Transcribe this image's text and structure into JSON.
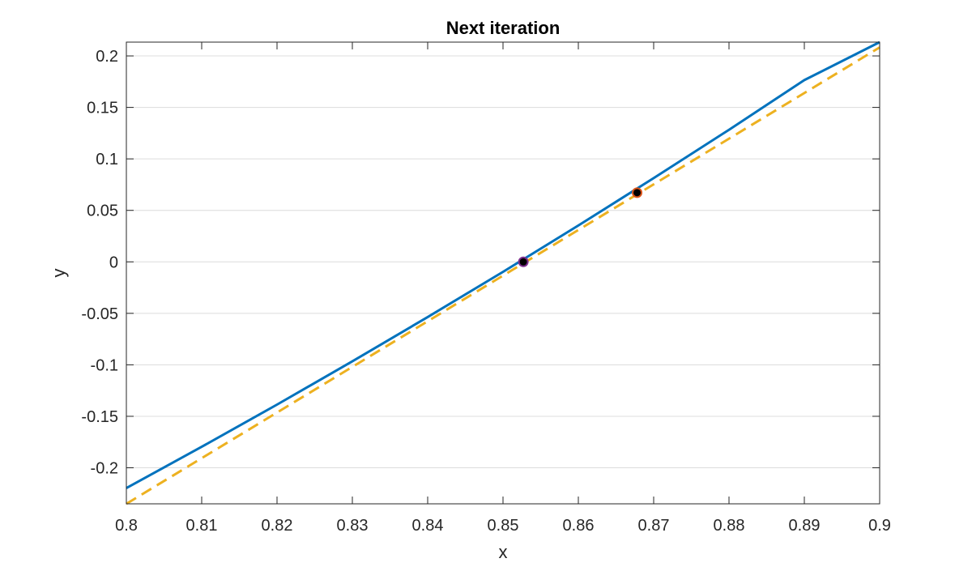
{
  "chart_data": {
    "type": "line",
    "title": "Next iteration",
    "xlabel": "x",
    "ylabel": "y",
    "xlim": [
      0.8,
      0.9
    ],
    "ylim": [
      -0.235,
      0.2134
    ],
    "xticks": [
      0.8,
      0.81,
      0.82,
      0.83,
      0.84,
      0.85,
      0.86,
      0.87,
      0.88,
      0.89,
      0.9
    ],
    "xtick_labels": [
      "0.8",
      "0.81",
      "0.82",
      "0.83",
      "0.84",
      "0.85",
      "0.86",
      "0.87",
      "0.88",
      "0.89",
      "0.9"
    ],
    "yticks": [
      -0.2,
      -0.15,
      -0.1,
      -0.05,
      0,
      0.05,
      0.1,
      0.15,
      0.2
    ],
    "ytick_labels": [
      "-0.2",
      "-0.15",
      "-0.1",
      "-0.05",
      "0",
      "0.05",
      "0.1",
      "0.15",
      "0.2"
    ],
    "grid": "horizontal",
    "series": [
      {
        "style": "solid",
        "color": "#0072BD",
        "x": [
          0.8,
          0.81,
          0.82,
          0.83,
          0.84,
          0.85,
          0.86,
          0.87,
          0.88,
          0.89,
          0.9
        ],
        "y": [
          -0.2197,
          -0.1796,
          -0.1386,
          -0.0966,
          -0.0536,
          -0.0097,
          0.0353,
          0.0813,
          0.1283,
          0.1765,
          0.2134
        ]
      },
      {
        "style": "dashed",
        "color": "#EDB120",
        "x": [
          0.8,
          0.9
        ],
        "y": [
          -0.235,
          0.2083
        ]
      }
    ],
    "points": [
      {
        "x": 0.8527,
        "y": 0.0,
        "color": "#000000",
        "edge": "#7E2F8E"
      },
      {
        "x": 0.8678,
        "y": 0.0672,
        "color": "#000000",
        "edge": "#D95319"
      }
    ]
  }
}
